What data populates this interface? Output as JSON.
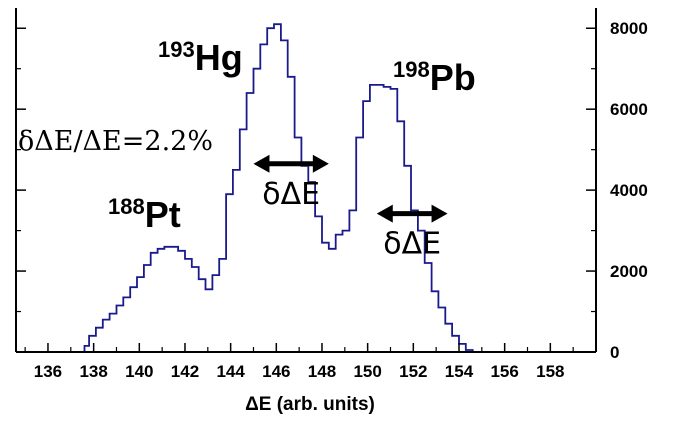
{
  "chart_data": {
    "type": "line",
    "step": true,
    "xlabel": "ΔE (arb. units)",
    "ylabel": "",
    "xlim": [
      134.6,
      160
    ],
    "ylim": [
      0,
      8500
    ],
    "x_ticks": [
      136,
      138,
      140,
      142,
      144,
      146,
      148,
      150,
      152,
      154,
      156,
      158
    ],
    "y_ticks": [
      0,
      2000,
      4000,
      6000,
      8000
    ],
    "y_axis_side": "right",
    "grid": false,
    "line_color": "#1a1a8c",
    "series": [
      {
        "bin_edges": [
          134.6,
          137.6,
          137.8,
          138.1,
          138.4,
          138.7,
          139.0,
          139.3,
          139.6,
          139.9,
          140.2,
          140.5,
          140.8,
          141.1,
          141.4,
          141.7,
          142.0,
          142.3,
          142.6,
          142.9,
          143.2,
          143.5,
          143.8,
          144.1,
          144.4,
          144.7,
          145.0,
          145.3,
          145.6,
          145.9,
          146.2,
          146.5,
          146.8,
          147.1,
          147.4,
          147.7,
          148.0,
          148.3,
          148.6,
          148.9,
          149.2,
          149.5,
          149.8,
          150.1,
          150.4,
          150.7,
          151.0,
          151.3,
          151.6,
          151.9,
          152.2,
          152.5,
          152.8,
          153.1,
          153.4,
          153.7,
          154.0,
          154.3,
          154.6,
          154.9,
          155.2,
          155.5,
          155.8,
          156.1,
          160.0
        ],
        "counts": [
          0,
          150,
          400,
          600,
          800,
          950,
          1150,
          1350,
          1600,
          1850,
          2150,
          2450,
          2550,
          2600,
          2600,
          2500,
          2300,
          2100,
          1800,
          1550,
          1900,
          2300,
          3900,
          4500,
          5500,
          6400,
          7000,
          7600,
          8000,
          8100,
          7700,
          6800,
          5300,
          4600,
          4200,
          3350,
          2700,
          2550,
          2900,
          3000,
          3500,
          5300,
          6200,
          6600,
          6600,
          6550,
          6500,
          5700,
          4600,
          3500,
          3000,
          2200,
          1500,
          1100,
          700,
          400,
          200,
          50,
          0,
          0,
          0,
          0,
          0,
          0
        ]
      }
    ],
    "annotations": [
      {
        "type": "label",
        "mass": "188",
        "element": "Pt",
        "x": 141.8
      },
      {
        "type": "label",
        "mass": "193",
        "element": "Hg",
        "x": 146.9
      },
      {
        "type": "label",
        "mass": "198",
        "element": "Pb",
        "x": 152.2
      },
      {
        "type": "text",
        "text": "δΔE/ΔE=2.2%"
      },
      {
        "type": "fwhm-arrow",
        "x_start": 145.0,
        "x_end": 148.3,
        "y": 4650,
        "label": "δΔE"
      },
      {
        "type": "fwhm-arrow",
        "x_start": 150.4,
        "x_end": 153.5,
        "y": 3420,
        "label": "δΔE"
      }
    ]
  }
}
